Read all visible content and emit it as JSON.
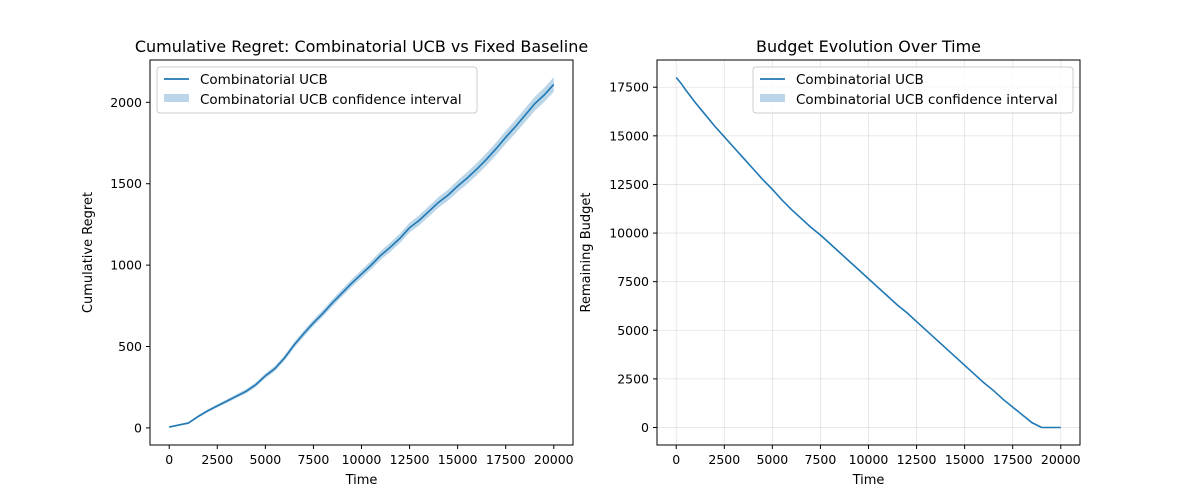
{
  "chart_data": [
    {
      "type": "line",
      "title": "Cumulative Regret: Combinatorial UCB vs Fixed Baseline",
      "xlabel": "Time",
      "ylabel": "Cumulative Regret",
      "xlim": [
        -1000,
        21000
      ],
      "ylim": [
        -105,
        2260
      ],
      "xticks": [
        0,
        2500,
        5000,
        7500,
        10000,
        12500,
        15000,
        17500,
        20000
      ],
      "yticks": [
        0,
        500,
        1000,
        1500,
        2000
      ],
      "grid": false,
      "legend_position": "top-left",
      "legend": [
        "Combinatorial UCB",
        "Combinatorial UCB confidence interval"
      ],
      "series": [
        {
          "name": "Combinatorial UCB",
          "color": "#1f77b4",
          "x": [
            0,
            500,
            1000,
            1500,
            2000,
            2500,
            3000,
            3500,
            4000,
            4500,
            5000,
            5500,
            6000,
            6500,
            7000,
            7500,
            8000,
            8500,
            9000,
            9500,
            10000,
            10500,
            11000,
            11500,
            12000,
            12500,
            13000,
            13500,
            14000,
            14500,
            15000,
            15500,
            16000,
            16500,
            17000,
            17500,
            18000,
            18500,
            19000,
            19500,
            20000
          ],
          "y": [
            5,
            18,
            30,
            70,
            105,
            135,
            165,
            195,
            225,
            265,
            320,
            365,
            430,
            510,
            580,
            645,
            705,
            770,
            830,
            890,
            945,
            1000,
            1060,
            1110,
            1165,
            1230,
            1275,
            1330,
            1385,
            1430,
            1485,
            1535,
            1590,
            1650,
            1715,
            1785,
            1850,
            1920,
            1990,
            2045,
            2110
          ],
          "ci_lower": [
            0,
            12,
            23,
            62,
            96,
            125,
            154,
            183,
            212,
            251,
            305,
            349,
            413,
            492,
            561,
            625,
            684,
            748,
            807,
            866,
            920,
            974,
            1033,
            1082,
            1136,
            1200,
            1244,
            1298,
            1352,
            1396,
            1450,
            1499,
            1553,
            1612,
            1676,
            1745,
            1809,
            1878,
            1947,
            2001,
            2065
          ],
          "ci_upper": [
            10,
            24,
            37,
            78,
            114,
            145,
            176,
            207,
            238,
            279,
            335,
            381,
            447,
            528,
            599,
            665,
            726,
            792,
            853,
            914,
            970,
            1026,
            1087,
            1138,
            1194,
            1260,
            1306,
            1362,
            1418,
            1464,
            1520,
            1571,
            1627,
            1688,
            1754,
            1825,
            1891,
            1962,
            2033,
            2089,
            2155
          ]
        }
      ]
    },
    {
      "type": "line",
      "title": "Budget Evolution Over Time",
      "xlabel": "Time",
      "ylabel": "Remaining Budget",
      "xlim": [
        -1000,
        21000
      ],
      "ylim": [
        -900,
        18900
      ],
      "xticks": [
        0,
        2500,
        5000,
        7500,
        10000,
        12500,
        15000,
        17500,
        20000
      ],
      "yticks": [
        0,
        2500,
        5000,
        7500,
        10000,
        12500,
        15000,
        17500
      ],
      "grid": true,
      "legend_position": "top-right",
      "legend": [
        "Combinatorial UCB",
        "Combinatorial UCB confidence interval"
      ],
      "series": [
        {
          "name": "Combinatorial UCB",
          "color": "#1f77b4",
          "x": [
            0,
            250,
            500,
            1000,
            1500,
            2000,
            2500,
            3000,
            3500,
            4000,
            4500,
            5000,
            5500,
            6000,
            6500,
            7000,
            7500,
            8000,
            8500,
            9000,
            9500,
            10000,
            10500,
            11000,
            11500,
            12000,
            12500,
            13000,
            13500,
            14000,
            14500,
            15000,
            15500,
            16000,
            16500,
            17000,
            17500,
            18000,
            18500,
            19000,
            19500,
            20000
          ],
          "y": [
            18000,
            17700,
            17350,
            16700,
            16100,
            15500,
            14950,
            14400,
            13850,
            13300,
            12750,
            12250,
            11700,
            11200,
            10750,
            10300,
            9900,
            9450,
            9000,
            8550,
            8100,
            7650,
            7200,
            6750,
            6300,
            5900,
            5450,
            5000,
            4550,
            4100,
            3650,
            3200,
            2750,
            2300,
            1900,
            1450,
            1050,
            650,
            250,
            -150,
            -550,
            0
          ]
        }
      ]
    }
  ]
}
